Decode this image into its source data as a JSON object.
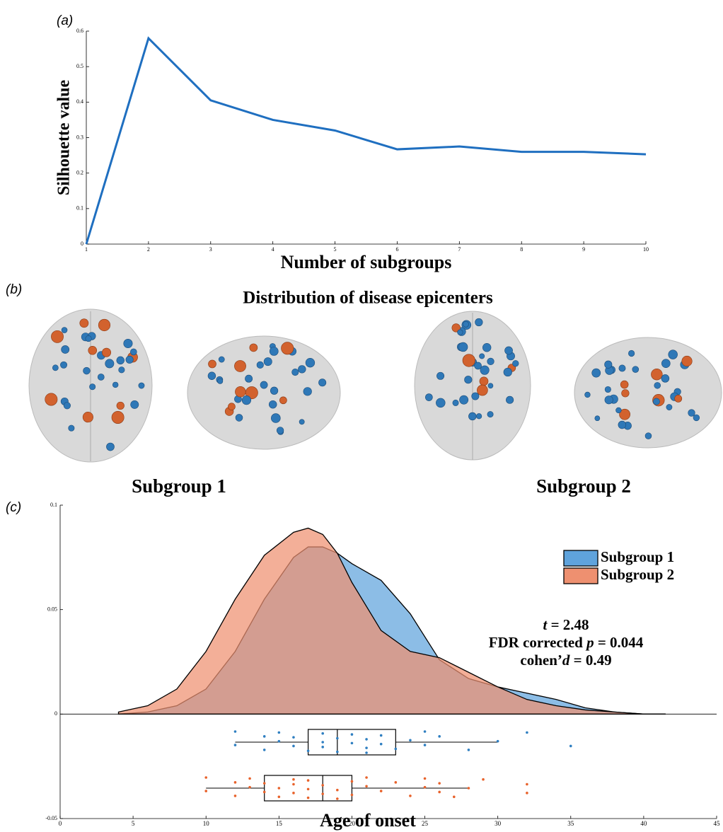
{
  "chart_data": [
    {
      "type": "line",
      "panel_label": "(a)",
      "xlabel": "Number of subgroups",
      "ylabel": "Silhouette value",
      "x": [
        1,
        2,
        3,
        4,
        5,
        6,
        7,
        8,
        9,
        10
      ],
      "series": [
        {
          "color": "#1f6fc0",
          "values": [
            0,
            0.58,
            0.405,
            0.35,
            0.32,
            0.267,
            0.275,
            0.26,
            0.26,
            0.253
          ]
        }
      ],
      "xlim": [
        1,
        10
      ],
      "xticks": [
        1,
        2,
        3,
        4,
        5,
        6,
        7,
        8,
        9,
        10
      ],
      "ylim": [
        0,
        0.6
      ],
      "yticks": [
        0,
        0.1,
        0.2,
        0.3,
        0.4,
        0.5,
        0.6
      ]
    },
    {
      "type": "density",
      "panel_label": "(c)",
      "xlabel": "Age of onset",
      "legend": "upper right",
      "x": [
        4,
        6,
        8,
        10,
        12,
        14,
        16,
        17,
        18,
        19,
        20,
        22,
        24,
        26,
        28,
        30,
        32,
        34,
        36,
        38,
        40,
        41.5
      ],
      "series": [
        {
          "name": "Subgroup 1",
          "color": "#5fa3dc",
          "point_color": "#2f7fc1",
          "values": [
            0,
            0.001,
            0.004,
            0.012,
            0.03,
            0.055,
            0.075,
            0.08,
            0.08,
            0.077,
            0.072,
            0.064,
            0.048,
            0.026,
            0.017,
            0.013,
            0.01,
            0.007,
            0.003,
            0.001,
            0,
            0
          ],
          "box": {
            "whisker_low": 12,
            "q1": 17,
            "median": 19,
            "q3": 23,
            "whisker_high": 30
          },
          "points": [
            12,
            12,
            14,
            14,
            15,
            15,
            16,
            16,
            17,
            18,
            18,
            18,
            19,
            19,
            20,
            20,
            21,
            21,
            21,
            22,
            22,
            23,
            24,
            25,
            25,
            26,
            28,
            30,
            32,
            35
          ]
        },
        {
          "name": "Subgroup 2",
          "color": "#ee9070",
          "point_color": "#e8622b",
          "values": [
            0.001,
            0.004,
            0.012,
            0.03,
            0.055,
            0.076,
            0.087,
            0.089,
            0.086,
            0.077,
            0.063,
            0.04,
            0.03,
            0.027,
            0.02,
            0.013,
            0.007,
            0.004,
            0.002,
            0.001,
            0,
            0
          ],
          "box": {
            "whisker_low": 10,
            "q1": 14,
            "median": 18,
            "q3": 20,
            "whisker_high": 28
          },
          "points": [
            10,
            10,
            12,
            12,
            13,
            13,
            14,
            14,
            15,
            15,
            16,
            16,
            16,
            17,
            17,
            17,
            18,
            18,
            19,
            19,
            20,
            20,
            21,
            21,
            22,
            23,
            24,
            25,
            25,
            26,
            26,
            27,
            28,
            29,
            32,
            32
          ]
        }
      ],
      "annotation": [
        [
          {
            "italic": "t"
          },
          {
            "text": " = 2.48"
          }
        ],
        [
          {
            "text": "FDR corrected "
          },
          {
            "italic": "p"
          },
          {
            "text": " = 0.044"
          }
        ],
        [
          {
            "text": "cohen’"
          },
          {
            "italic": "d"
          },
          {
            "text": " = 0.49"
          }
        ]
      ],
      "xlim": [
        0,
        45
      ],
      "xticks": [
        0,
        5,
        10,
        15,
        20,
        25,
        30,
        35,
        40,
        45
      ],
      "ylim": [
        -0.05,
        0.1
      ],
      "yticks": [
        -0.05,
        0,
        0.05,
        0.1
      ]
    }
  ],
  "brain_panel": {
    "panel_label": "(b)",
    "title": "Distribution of disease epicenters",
    "subgroups": [
      "Subgroup 1",
      "Subgroup 2"
    ]
  }
}
